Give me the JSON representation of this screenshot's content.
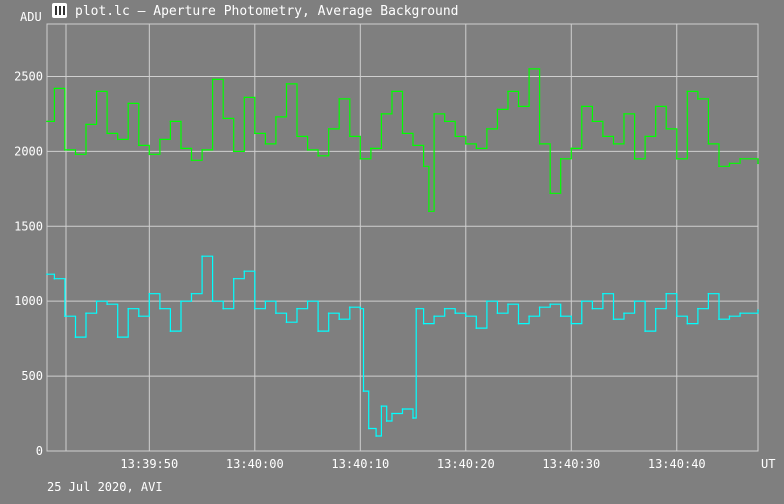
{
  "window": {
    "title": "plot.lc – Aperture Photometry, Average Background",
    "icon": "plot-app-icon"
  },
  "footer": {
    "date_label": "25 Jul 2020, AVI"
  },
  "colors": {
    "background": "#7f7f7f",
    "grid": "#cfcfcf",
    "text": "#ffffff",
    "series_green": "#00ff00",
    "series_cyan": "#00ffff"
  },
  "chart_data": {
    "type": "line",
    "ylabel": "ADU",
    "xlabel": "UT",
    "ylim": [
      0,
      2850
    ],
    "xlim": [
      "13:39:40.3",
      "13:40:47.7"
    ],
    "xtick_labels": [
      "13:39:50",
      "13:40:00",
      "13:40:10",
      "13:40:20",
      "13:40:30",
      "13:40:40"
    ],
    "ytick_labels": [
      "0",
      "500",
      "1000",
      "1500",
      "2000",
      "2500"
    ],
    "grid": true,
    "series": [
      {
        "color": "#00ff00",
        "points": [
          [
            "13:39:40.3",
            2200
          ],
          [
            "13:39:41.0",
            2420
          ],
          [
            "13:39:42.0",
            2010
          ],
          [
            "13:39:43.0",
            1980
          ],
          [
            "13:39:44.0",
            2180
          ],
          [
            "13:39:45.0",
            2400
          ],
          [
            "13:39:46.0",
            2120
          ],
          [
            "13:39:47.0",
            2080
          ],
          [
            "13:39:48.0",
            2320
          ],
          [
            "13:39:49.0",
            2040
          ],
          [
            "13:39:50.0",
            1980
          ],
          [
            "13:39:51.0",
            2080
          ],
          [
            "13:39:52.0",
            2200
          ],
          [
            "13:39:53.0",
            2020
          ],
          [
            "13:39:54.0",
            1940
          ],
          [
            "13:39:55.0",
            2010
          ],
          [
            "13:39:56.0",
            2480
          ],
          [
            "13:39:57.0",
            2220
          ],
          [
            "13:39:58.0",
            2000
          ],
          [
            "13:39:59.0",
            2360
          ],
          [
            "13:40:00.0",
            2120
          ],
          [
            "13:40:01.0",
            2050
          ],
          [
            "13:40:02.0",
            2230
          ],
          [
            "13:40:03.0",
            2450
          ],
          [
            "13:40:04.0",
            2100
          ],
          [
            "13:40:05.0",
            2010
          ],
          [
            "13:40:06.0",
            1970
          ],
          [
            "13:40:07.0",
            2150
          ],
          [
            "13:40:08.0",
            2350
          ],
          [
            "13:40:09.0",
            2100
          ],
          [
            "13:40:10.0",
            1950
          ],
          [
            "13:40:11.0",
            2020
          ],
          [
            "13:40:12.0",
            2250
          ],
          [
            "13:40:13.0",
            2400
          ],
          [
            "13:40:14.0",
            2120
          ],
          [
            "13:40:15.0",
            2040
          ],
          [
            "13:40:16.0",
            1900
          ],
          [
            "13:40:16.5",
            1600
          ],
          [
            "13:40:17.0",
            2250
          ],
          [
            "13:40:18.0",
            2200
          ],
          [
            "13:40:19.0",
            2100
          ],
          [
            "13:40:20.0",
            2050
          ],
          [
            "13:40:21.0",
            2020
          ],
          [
            "13:40:22.0",
            2150
          ],
          [
            "13:40:23.0",
            2280
          ],
          [
            "13:40:24.0",
            2400
          ],
          [
            "13:40:25.0",
            2300
          ],
          [
            "13:40:26.0",
            2550
          ],
          [
            "13:40:27.0",
            2050
          ],
          [
            "13:40:28.0",
            1720
          ],
          [
            "13:40:29.0",
            1950
          ],
          [
            "13:40:30.0",
            2020
          ],
          [
            "13:40:31.0",
            2300
          ],
          [
            "13:40:32.0",
            2200
          ],
          [
            "13:40:33.0",
            2100
          ],
          [
            "13:40:34.0",
            2050
          ],
          [
            "13:40:35.0",
            2250
          ],
          [
            "13:40:36.0",
            1950
          ],
          [
            "13:40:37.0",
            2100
          ],
          [
            "13:40:38.0",
            2300
          ],
          [
            "13:40:39.0",
            2150
          ],
          [
            "13:40:40.0",
            1950
          ],
          [
            "13:40:41.0",
            2400
          ],
          [
            "13:40:42.0",
            2350
          ],
          [
            "13:40:43.0",
            2050
          ],
          [
            "13:40:44.0",
            1900
          ],
          [
            "13:40:45.0",
            1920
          ],
          [
            "13:40:46.0",
            1950
          ],
          [
            "13:40:47.7",
            1920
          ]
        ]
      },
      {
        "color": "#00ffff",
        "points": [
          [
            "13:39:40.3",
            1180
          ],
          [
            "13:39:41.0",
            1150
          ],
          [
            "13:39:42.0",
            900
          ],
          [
            "13:39:43.0",
            760
          ],
          [
            "13:39:44.0",
            920
          ],
          [
            "13:39:45.0",
            1000
          ],
          [
            "13:39:46.0",
            980
          ],
          [
            "13:39:47.0",
            760
          ],
          [
            "13:39:48.0",
            950
          ],
          [
            "13:39:49.0",
            900
          ],
          [
            "13:39:50.0",
            1050
          ],
          [
            "13:39:51.0",
            950
          ],
          [
            "13:39:52.0",
            800
          ],
          [
            "13:39:53.0",
            1000
          ],
          [
            "13:39:54.0",
            1050
          ],
          [
            "13:39:55.0",
            1300
          ],
          [
            "13:39:56.0",
            1000
          ],
          [
            "13:39:57.0",
            950
          ],
          [
            "13:39:58.0",
            1150
          ],
          [
            "13:39:59.0",
            1200
          ],
          [
            "13:40:00.0",
            950
          ],
          [
            "13:40:01.0",
            1000
          ],
          [
            "13:40:02.0",
            920
          ],
          [
            "13:40:03.0",
            860
          ],
          [
            "13:40:04.0",
            950
          ],
          [
            "13:40:05.0",
            1000
          ],
          [
            "13:40:06.0",
            800
          ],
          [
            "13:40:07.0",
            920
          ],
          [
            "13:40:08.0",
            880
          ],
          [
            "13:40:09.0",
            960
          ],
          [
            "13:40:10.0",
            950
          ],
          [
            "13:40:10.3",
            400
          ],
          [
            "13:40:10.8",
            150
          ],
          [
            "13:40:11.5",
            100
          ],
          [
            "13:40:12.0",
            300
          ],
          [
            "13:40:12.5",
            200
          ],
          [
            "13:40:13.0",
            250
          ],
          [
            "13:40:14.0",
            280
          ],
          [
            "13:40:15.0",
            220
          ],
          [
            "13:40:15.3",
            950
          ],
          [
            "13:40:16.0",
            850
          ],
          [
            "13:40:17.0",
            900
          ],
          [
            "13:40:18.0",
            950
          ],
          [
            "13:40:19.0",
            920
          ],
          [
            "13:40:20.0",
            900
          ],
          [
            "13:40:21.0",
            820
          ],
          [
            "13:40:22.0",
            1000
          ],
          [
            "13:40:23.0",
            920
          ],
          [
            "13:40:24.0",
            980
          ],
          [
            "13:40:25.0",
            850
          ],
          [
            "13:40:26.0",
            900
          ],
          [
            "13:40:27.0",
            960
          ],
          [
            "13:40:28.0",
            980
          ],
          [
            "13:40:29.0",
            900
          ],
          [
            "13:40:30.0",
            850
          ],
          [
            "13:40:31.0",
            1000
          ],
          [
            "13:40:32.0",
            950
          ],
          [
            "13:40:33.0",
            1050
          ],
          [
            "13:40:34.0",
            880
          ],
          [
            "13:40:35.0",
            920
          ],
          [
            "13:40:36.0",
            1000
          ],
          [
            "13:40:37.0",
            800
          ],
          [
            "13:40:38.0",
            950
          ],
          [
            "13:40:39.0",
            1050
          ],
          [
            "13:40:40.0",
            900
          ],
          [
            "13:40:41.0",
            850
          ],
          [
            "13:40:42.0",
            950
          ],
          [
            "13:40:43.0",
            1050
          ],
          [
            "13:40:44.0",
            880
          ],
          [
            "13:40:45.0",
            900
          ],
          [
            "13:40:46.0",
            920
          ],
          [
            "13:40:47.7",
            940
          ]
        ]
      }
    ]
  }
}
